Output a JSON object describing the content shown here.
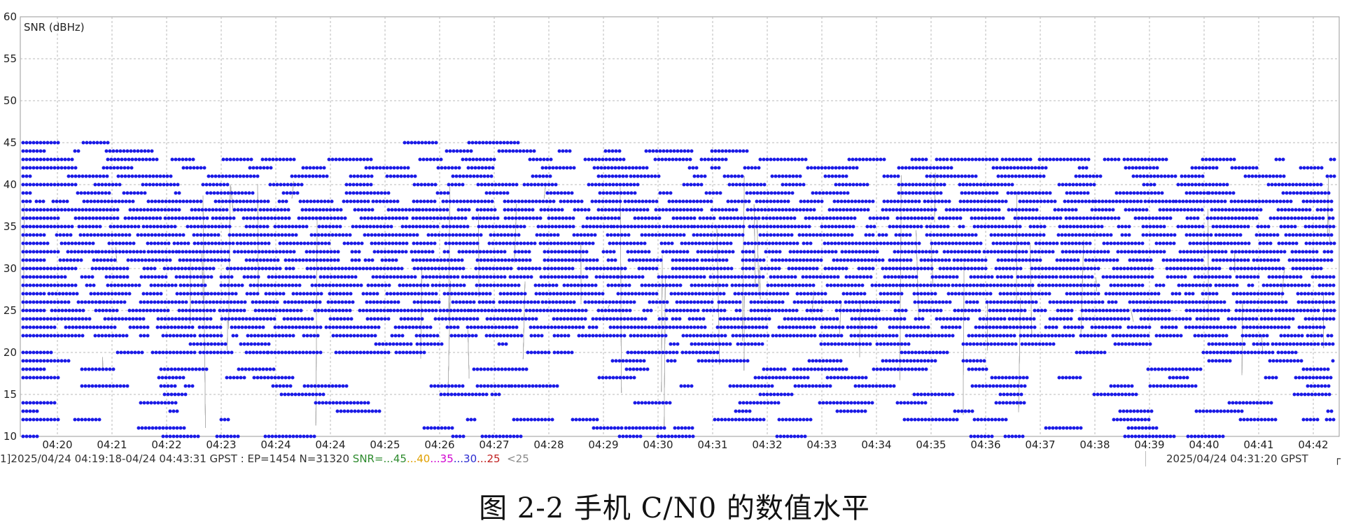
{
  "chart_data": {
    "type": "scatter",
    "title": "",
    "xlabel": "",
    "ylabel": "SNR (dBHz)",
    "ylim": [
      10,
      60
    ],
    "y_ticks": [
      "10",
      "15",
      "20",
      "25",
      "30",
      "35",
      "40",
      "45",
      "50",
      "55",
      "60"
    ],
    "x_tick_labels": [
      "04:20",
      "04:21",
      "04:22",
      "04:23",
      "04:24",
      "04:24",
      "04:25",
      "04:26",
      "04:27",
      "04:28",
      "04:29",
      "04:30",
      "04:31",
      "04:32",
      "04:33",
      "04:34",
      "04:35",
      "04:36",
      "04:37",
      "04:38",
      "04:39",
      "04:40",
      "04:41",
      "04:42",
      "04:43"
    ],
    "grid": true,
    "marker_color": "#1a1ae6",
    "line_color": "#b0b0b0",
    "series": [
      {
        "values_note_snr_range": "",
        "segments": [
          {
            "x_start_min": 0.0,
            "x_end_min": 1.5,
            "y_min": 10,
            "y_max": 45
          },
          {
            "x_start_min": 1.5,
            "x_end_min": 6.5,
            "y_min": 11,
            "y_max": 43
          },
          {
            "x_start_min": 6.5,
            "x_end_min": 8.5,
            "y_min": 10,
            "y_max": 45
          },
          {
            "x_start_min": 8.5,
            "x_end_min": 13.5,
            "y_min": 14,
            "y_max": 44
          },
          {
            "x_start_min": 13.5,
            "x_end_min": 16.0,
            "y_min": 10,
            "y_max": 43
          },
          {
            "x_start_min": 16.0,
            "x_end_min": 24.2,
            "y_min": 10,
            "y_max": 43
          }
        ]
      }
    ]
  },
  "status": {
    "left_prefix": "1]2025/04/24 04:19:18-04/24 04:43:31 GPST : EP=1454 N=31320 ",
    "snr_label": "SNR=",
    "lv45": "...45",
    "lv40": "...40",
    "lv35": "...35",
    "lv30": "...30",
    "lv25": "...25",
    "lvlt": "<25",
    "right_time": "2025/04/24 04:31:20 GPST",
    "corner": "┌"
  },
  "caption": "图 2-2  手机 C/N0 的数值水平"
}
